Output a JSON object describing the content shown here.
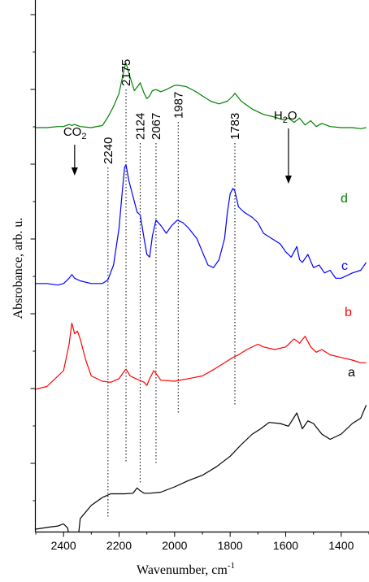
{
  "chart_data": {
    "type": "line",
    "xlabel": "Wavenumber, cm",
    "xlabel_sup": "-1",
    "ylabel": "Absrobance, arb. u.",
    "xlim": [
      2500,
      1300
    ],
    "x_reversed": true,
    "x_ticks": [
      2400,
      2200,
      2000,
      1800,
      1600,
      1400
    ],
    "y_ticks_labeled": false,
    "grid": false,
    "annotations": {
      "co2": {
        "text": "CO",
        "sub": "2",
        "x": 2360
      },
      "h2o": {
        "pre": "H",
        "sub": "2",
        "post": "O",
        "x": 1590
      },
      "peaks": [
        {
          "label": "2240",
          "x": 2240
        },
        {
          "label": "2175",
          "x": 2175
        },
        {
          "label": "2124",
          "x": 2124
        },
        {
          "label": "2067",
          "x": 2067
        },
        {
          "label": "1987",
          "x": 1987
        },
        {
          "label": "1783",
          "x": 1783
        }
      ]
    },
    "series": [
      {
        "name": "a",
        "color": "#000000",
        "x": [
          2500,
          2450,
          2420,
          2400,
          2385,
          2375,
          2368,
          2362,
          2356,
          2350,
          2340,
          2300,
          2260,
          2230,
          2210,
          2180,
          2150,
          2135,
          2125,
          2110,
          2090,
          2050,
          2000,
          1950,
          1900,
          1850,
          1800,
          1760,
          1720,
          1690,
          1660,
          1620,
          1590,
          1560,
          1540,
          1520,
          1500,
          1470,
          1440,
          1400,
          1360,
          1330,
          1310
        ],
        "y": [
          0.6,
          0.64,
          0.66,
          0.7,
          0.62,
          0.3,
          0.05,
          0.25,
          0.12,
          0.3,
          0.8,
          1.05,
          1.2,
          1.27,
          1.27,
          1.27,
          1.28,
          1.38,
          1.33,
          1.28,
          1.28,
          1.3,
          1.4,
          1.52,
          1.62,
          1.78,
          1.98,
          2.2,
          2.4,
          2.5,
          2.62,
          2.6,
          2.55,
          2.8,
          2.5,
          2.65,
          2.6,
          2.4,
          2.3,
          2.4,
          2.6,
          2.7,
          2.95
        ]
      },
      {
        "name": "b",
        "color": "#ff0000",
        "x": [
          2500,
          2460,
          2430,
          2400,
          2380,
          2370,
          2360,
          2350,
          2340,
          2320,
          2300,
          2260,
          2230,
          2200,
          2180,
          2175,
          2160,
          2140,
          2110,
          2100,
          2090,
          2075,
          2067,
          2050,
          2000,
          1950,
          1900,
          1860,
          1820,
          1790,
          1770,
          1740,
          1700,
          1680,
          1640,
          1600,
          1570,
          1550,
          1530,
          1510,
          1490,
          1470,
          1440,
          1400,
          1360,
          1330,
          1310
        ],
        "y": [
          3.25,
          3.3,
          3.45,
          3.6,
          4.1,
          4.5,
          4.3,
          4.35,
          4.2,
          3.8,
          3.5,
          3.4,
          3.38,
          3.45,
          3.6,
          3.63,
          3.5,
          3.45,
          3.38,
          3.32,
          3.45,
          3.6,
          3.55,
          3.42,
          3.4,
          3.45,
          3.5,
          3.62,
          3.75,
          3.85,
          3.9,
          4.0,
          4.1,
          4.05,
          4.0,
          4.05,
          4.2,
          4.12,
          4.25,
          4.05,
          3.95,
          4.0,
          3.9,
          3.85,
          3.8,
          3.75,
          3.75
        ]
      },
      {
        "name": "c",
        "color": "#0000ff",
        "x": [
          2500,
          2460,
          2420,
          2400,
          2380,
          2370,
          2360,
          2340,
          2300,
          2260,
          2240,
          2220,
          2200,
          2190,
          2180,
          2175,
          2165,
          2150,
          2135,
          2124,
          2110,
          2100,
          2090,
          2080,
          2067,
          2050,
          2030,
          2010,
          1990,
          1970,
          1950,
          1920,
          1900,
          1880,
          1860,
          1840,
          1820,
          1810,
          1800,
          1790,
          1783,
          1770,
          1750,
          1720,
          1700,
          1680,
          1650,
          1620,
          1600,
          1580,
          1560,
          1550,
          1540,
          1520,
          1500,
          1480,
          1460,
          1440,
          1420,
          1400,
          1360,
          1330,
          1310
        ],
        "y": [
          5.25,
          5.25,
          5.22,
          5.25,
          5.35,
          5.42,
          5.35,
          5.3,
          5.25,
          5.25,
          5.32,
          5.6,
          6.3,
          6.9,
          7.45,
          7.5,
          7.2,
          6.9,
          6.6,
          6.55,
          6.1,
          5.8,
          5.75,
          6.15,
          6.45,
          6.35,
          6.2,
          6.35,
          6.45,
          6.4,
          6.3,
          6.1,
          5.85,
          5.6,
          5.55,
          5.7,
          6.1,
          6.6,
          6.95,
          7.05,
          7.0,
          6.7,
          6.6,
          6.5,
          6.4,
          6.2,
          6.1,
          6.0,
          5.85,
          5.75,
          5.95,
          5.7,
          5.65,
          5.8,
          5.55,
          5.6,
          5.45,
          5.5,
          5.35,
          5.35,
          5.45,
          5.5,
          5.65
        ]
      },
      {
        "name": "d",
        "color": "#008000",
        "x": [
          2500,
          2460,
          2420,
          2400,
          2380,
          2370,
          2360,
          2340,
          2300,
          2260,
          2240,
          2220,
          2200,
          2190,
          2180,
          2175,
          2160,
          2145,
          2130,
          2124,
          2110,
          2100,
          2090,
          2080,
          2067,
          2050,
          2030,
          2000,
          1987,
          1960,
          1930,
          1900,
          1870,
          1840,
          1810,
          1790,
          1783,
          1760,
          1720,
          1680,
          1640,
          1610,
          1590,
          1570,
          1550,
          1530,
          1510,
          1490,
          1470,
          1440,
          1400,
          1360,
          1330,
          1310
        ],
        "y": [
          8.2,
          8.2,
          8.22,
          8.22,
          8.26,
          8.24,
          8.26,
          8.22,
          8.2,
          8.24,
          8.4,
          8.6,
          8.85,
          9.1,
          9.35,
          9.42,
          9.15,
          8.9,
          9.0,
          9.05,
          8.85,
          8.75,
          8.8,
          8.9,
          8.92,
          8.88,
          8.92,
          9.0,
          9.0,
          8.98,
          8.9,
          8.8,
          8.7,
          8.65,
          8.7,
          8.8,
          8.85,
          8.7,
          8.55,
          8.45,
          8.4,
          8.35,
          8.38,
          8.3,
          8.38,
          8.25,
          8.33,
          8.22,
          8.28,
          8.22,
          8.2,
          8.2,
          8.18,
          8.2
        ]
      }
    ]
  }
}
